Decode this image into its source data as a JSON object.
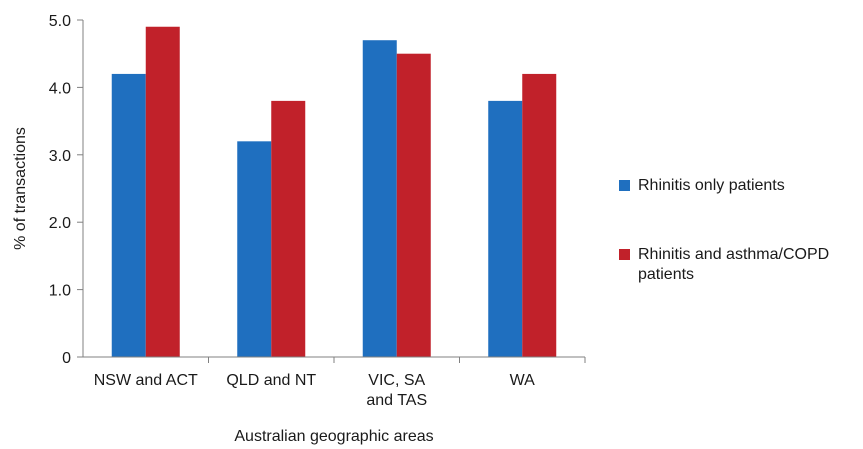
{
  "chart_data": {
    "type": "bar",
    "categories": [
      "NSW and ACT",
      "QLD and NT",
      "VIC, SA\nand TAS",
      "WA"
    ],
    "series": [
      {
        "name": "Rhinitis only patients",
        "color": "#1f6fbf",
        "values": [
          4.2,
          3.2,
          4.7,
          3.8
        ]
      },
      {
        "name": "Rhinitis and asthma/COPD patients",
        "color": "#c1212a",
        "values": [
          4.9,
          3.8,
          4.5,
          4.2
        ]
      }
    ],
    "title": "",
    "xlabel": "Australian geographic areas",
    "ylabel": "% of transactions",
    "ylim": [
      0,
      5.0
    ],
    "yticks": [
      0,
      1.0,
      2.0,
      3.0,
      4.0,
      5.0
    ],
    "ytick_labels": [
      "0",
      "1.0",
      "2.0",
      "3.0",
      "4.0",
      "5.0"
    ],
    "grid": false,
    "legend_position": "right"
  }
}
